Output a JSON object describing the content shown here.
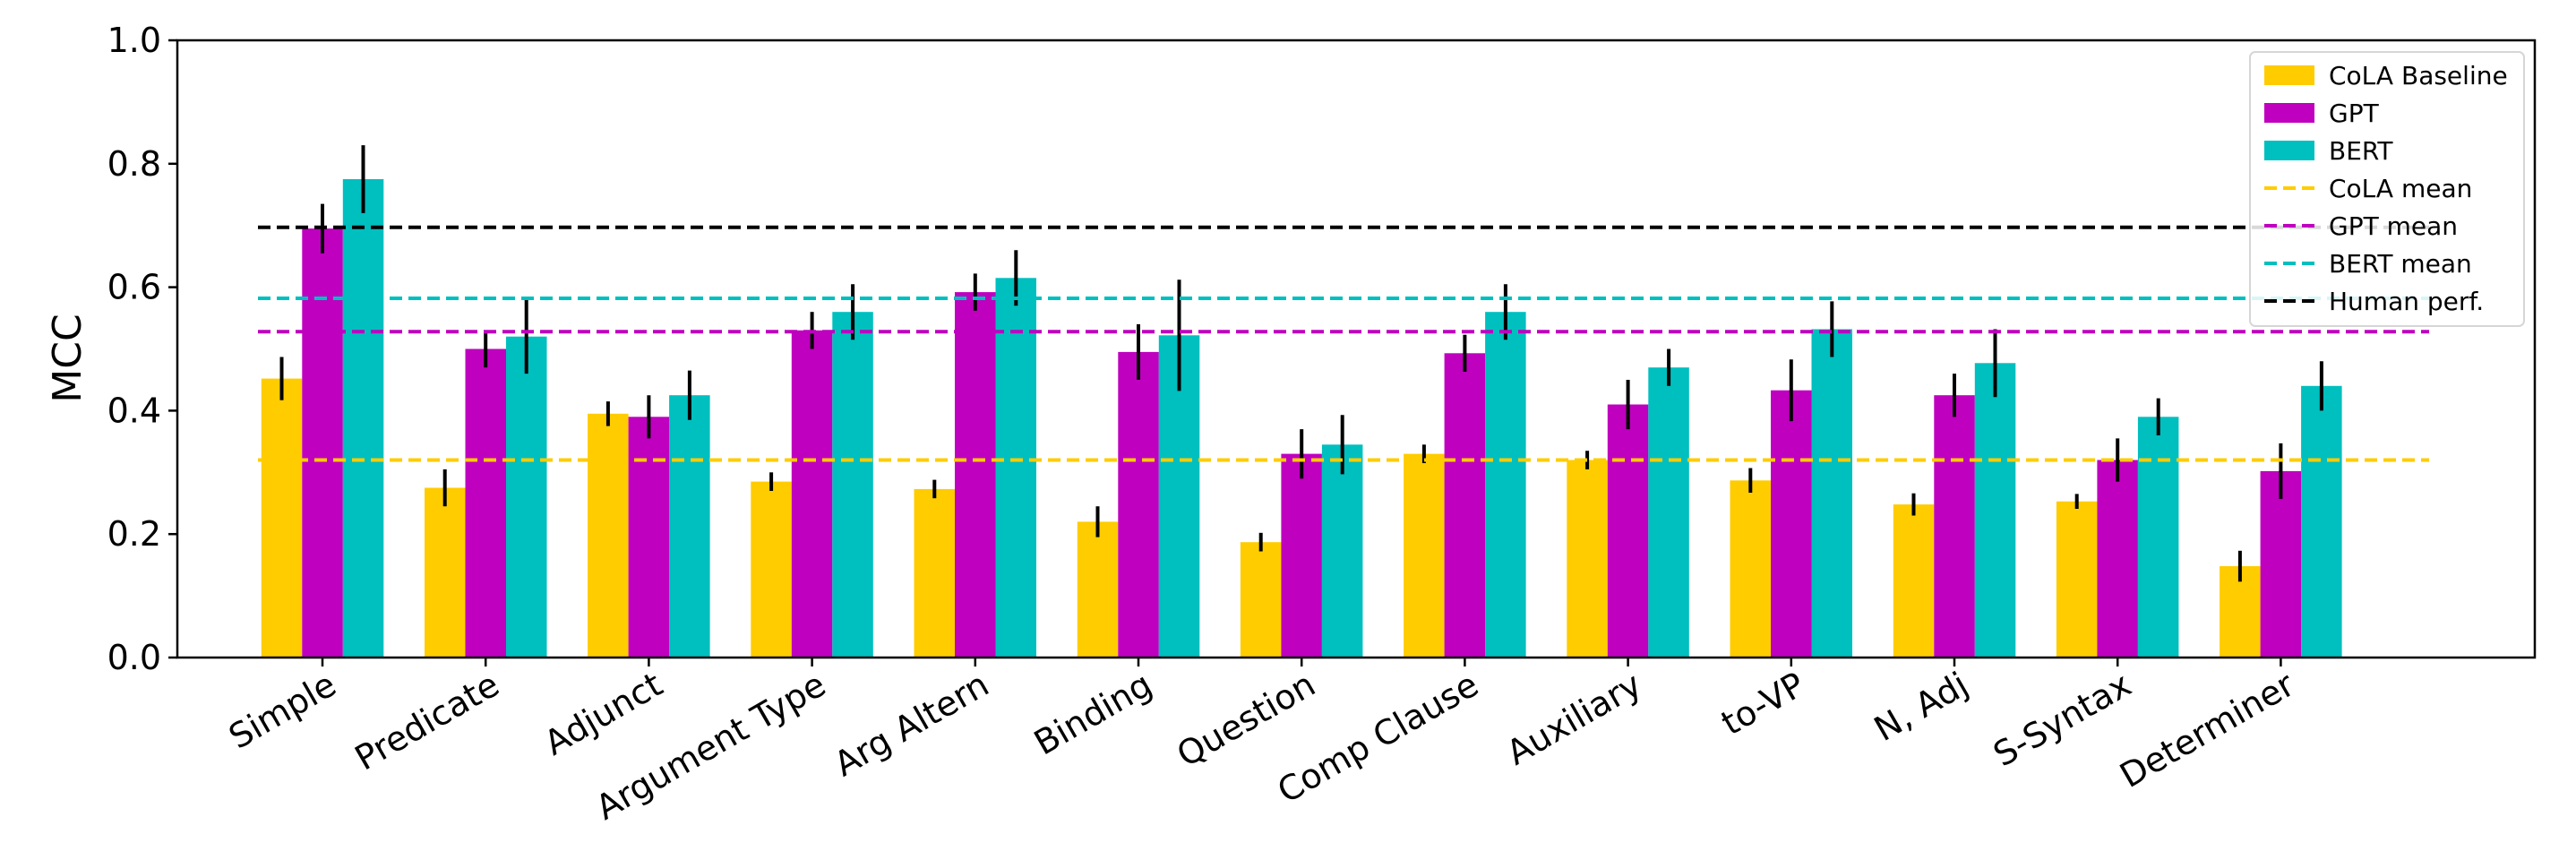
{
  "chart_data": {
    "type": "bar",
    "title": "",
    "xlabel": "",
    "ylabel": "MCC",
    "ylim": [
      0,
      1.0
    ],
    "yticks": [
      "0.0",
      "0.2",
      "0.4",
      "0.6",
      "0.8",
      "1.0"
    ],
    "grid": false,
    "legend_position": "top-right",
    "categories": [
      "Simple",
      "Predicate",
      "Adjunct",
      "Argument Type",
      "Arg Altern",
      "Binding",
      "Question",
      "Comp Clause",
      "Auxiliary",
      "to-VP",
      "N, Adj",
      "S-Syntax",
      "Determiner"
    ],
    "series": [
      {
        "name": "CoLA Baseline",
        "color": "#ffcc00",
        "values": [
          0.452,
          0.275,
          0.395,
          0.285,
          0.273,
          0.22,
          0.187,
          0.33,
          0.32,
          0.287,
          0.248,
          0.253,
          0.148
        ],
        "errors": [
          0.035,
          0.03,
          0.02,
          0.015,
          0.015,
          0.025,
          0.015,
          0.015,
          0.015,
          0.02,
          0.018,
          0.012,
          0.025
        ]
      },
      {
        "name": "GPT",
        "color": "#bf00bf",
        "values": [
          0.695,
          0.5,
          0.39,
          0.53,
          0.592,
          0.495,
          0.33,
          0.493,
          0.41,
          0.433,
          0.425,
          0.32,
          0.302
        ],
        "errors": [
          0.04,
          0.03,
          0.035,
          0.03,
          0.03,
          0.045,
          0.04,
          0.03,
          0.04,
          0.05,
          0.035,
          0.035,
          0.045
        ]
      },
      {
        "name": "BERT",
        "color": "#00bfbf",
        "values": [
          0.775,
          0.52,
          0.425,
          0.56,
          0.615,
          0.522,
          0.345,
          0.56,
          0.47,
          0.532,
          0.477,
          0.39,
          0.44
        ],
        "errors": [
          0.055,
          0.06,
          0.04,
          0.045,
          0.045,
          0.09,
          0.048,
          0.045,
          0.03,
          0.045,
          0.055,
          0.03,
          0.04
        ]
      }
    ],
    "reference_lines": [
      {
        "name": "CoLA mean",
        "value": 0.32,
        "color": "#ffcc00"
      },
      {
        "name": "GPT mean",
        "value": 0.528,
        "color": "#bf00bf"
      },
      {
        "name": "BERT mean",
        "value": 0.582,
        "color": "#00bfbf"
      },
      {
        "name": "Human perf.",
        "value": 0.697,
        "color": "#000000"
      }
    ]
  }
}
